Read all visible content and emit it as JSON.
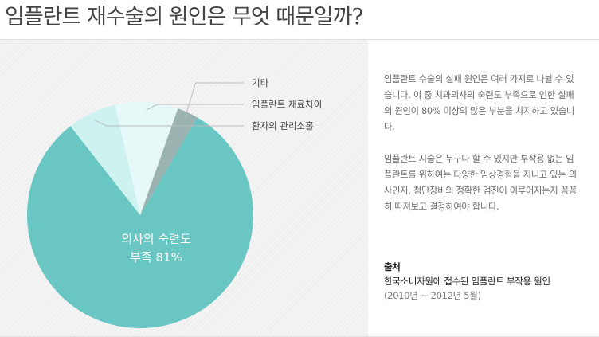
{
  "title": "임플란트 재수술의 원인은 무엇 때문일까?",
  "chart_data": {
    "type": "pie",
    "slices": [
      {
        "name": "의사의 숙련도 부족",
        "value": 81,
        "color": "#69c6c3",
        "label_lines": [
          "의사의 숙련도",
          "부족 81%"
        ]
      },
      {
        "name": "환자의 관리소홀",
        "value": 7,
        "color": "#cef2ef"
      },
      {
        "name": "임플란트 재료차이",
        "value": 9,
        "color": "#e6f8f7"
      },
      {
        "name": "기타",
        "value": 3,
        "color": "#9ab2b0"
      }
    ],
    "callout_labels": [
      "기타",
      "임플란트 재료차이",
      "환자의 관리소홀"
    ]
  },
  "description": {
    "paragraph1": "임플란트 수술의 실패 원인은 여러 가지로 나뉠 수 있습니다. 이 중 치과의사의 숙련도 부족으로 인한 실패의 원인이 80% 이상의 많은 부분을 차지하고 있습니다.",
    "paragraph2": "임플란트 시술은 누구나 할 수 있지만 부작용 없는 임플란트를 위하여는 다양한 임상경험을 지니고 있는 의사인지, 첨단장비의 정확한 검진이 이루어지는지 꼼꼼히 따져보고 결정하여야 합니다."
  },
  "source": {
    "label": "출처",
    "name": "한국소비자원에 접수된 임플란트 부작용 원인",
    "period": "(2010년 ~ 2012년 5월)"
  }
}
